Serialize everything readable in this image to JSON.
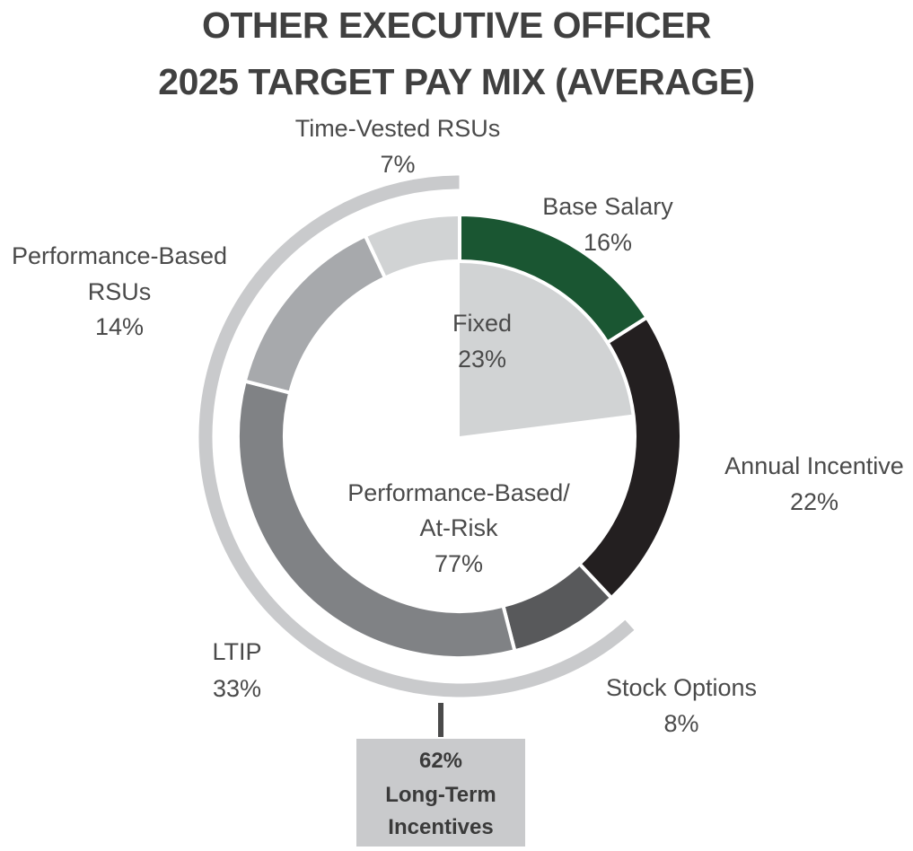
{
  "title": {
    "line1": "OTHER EXECUTIVE OFFICER",
    "line2": "2025 TARGET PAY MIX (AVERAGE)"
  },
  "chart_data": {
    "type": "pie",
    "outer_ring": {
      "slices": [
        {
          "label": "Base Salary",
          "value": 16,
          "value_label": "16%",
          "color": "#1a5632"
        },
        {
          "label": "Annual Incentive",
          "value": 22,
          "value_label": "22%",
          "color": "#231f20"
        },
        {
          "label": "Stock Options",
          "value": 8,
          "value_label": "8%",
          "color": "#58595b"
        },
        {
          "label": "LTIP",
          "value": 33,
          "value_label": "33%",
          "color": "#808285"
        },
        {
          "label_lines": [
            "Performance-Based",
            "RSUs"
          ],
          "value": 14,
          "value_label": "14%",
          "color": "#a7a9ac"
        },
        {
          "label": "Time-Vested RSUs",
          "value": 7,
          "value_label": "7%",
          "color": "#d1d3d4"
        }
      ]
    },
    "inner": [
      {
        "label": "Fixed",
        "value": 23,
        "value_label": "23%",
        "color": "#d1d3d4"
      },
      {
        "label_lines": [
          "Performance-Based/",
          "At-Risk"
        ],
        "value": 77,
        "value_label": "77%",
        "color": "#ffffff"
      }
    ],
    "bracket": {
      "value": 62,
      "value_label": "62%",
      "label_line1": "Long-Term",
      "label_line2": "Incentives",
      "color": "#c9cacc"
    }
  }
}
